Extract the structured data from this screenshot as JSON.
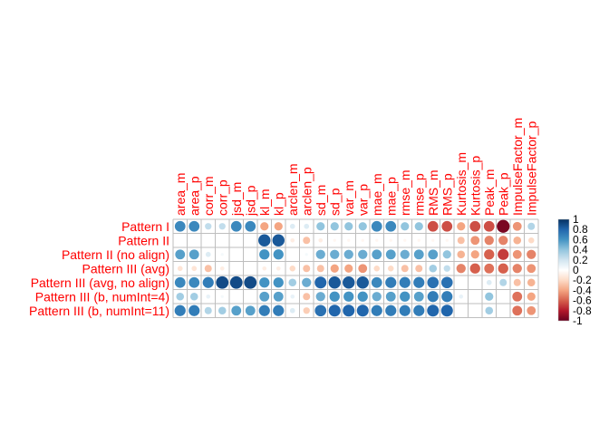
{
  "chart_data": {
    "type": "heatmap",
    "title": "",
    "method": "circle",
    "rows": [
      "Pattern I",
      "Pattern II",
      "Pattern II (no align)",
      "Pattern III (avg)",
      "Pattern III (avg, no align)",
      "Pattern III (b, numInt=4)",
      "Pattern III (b, numInt=11)"
    ],
    "columns": [
      "area_m",
      "area_p",
      "corr_m",
      "corr_p",
      "jsd_m",
      "jsd_p",
      "kl_m",
      "kl_p",
      "arclen_m",
      "arclen_p",
      "sd_m",
      "sd_p",
      "var_m",
      "var_p",
      "mae_m",
      "mae_p",
      "rmse_m",
      "rmse_p",
      "RMS_m",
      "RMS_p",
      "Kurtosis_m",
      "Kurtosis_p",
      "Peak_m",
      "Peak_p",
      "ImpulseFactor_m",
      "ImpulseFactor_p"
    ],
    "values": [
      [
        0.65,
        0.65,
        0.25,
        0.25,
        0.65,
        0.65,
        -0.4,
        -0.4,
        0.15,
        0.15,
        0.4,
        0.4,
        0.4,
        0.4,
        0.65,
        0.65,
        0.4,
        0.4,
        -0.65,
        -0.65,
        -0.4,
        -0.65,
        -0.65,
        -0.95,
        -0.45,
        0.3
      ],
      [
        0.0,
        0.0,
        0.0,
        0.0,
        0.0,
        0.0,
        0.85,
        0.85,
        -0.1,
        -0.3,
        -0.1,
        -0.05,
        -0.05,
        -0.05,
        -0.05,
        -0.05,
        -0.05,
        -0.05,
        -0.05,
        -0.05,
        -0.3,
        -0.45,
        -0.5,
        -0.5,
        -0.35,
        -0.2
      ],
      [
        0.55,
        0.55,
        0.15,
        0.05,
        0.0,
        0.0,
        0.6,
        0.6,
        0.0,
        0.05,
        0.5,
        0.5,
        0.5,
        0.5,
        0.55,
        0.55,
        0.5,
        0.55,
        0.55,
        0.4,
        -0.35,
        -0.4,
        -0.6,
        -0.7,
        -0.45,
        -0.5
      ],
      [
        -0.15,
        -0.15,
        -0.3,
        -0.1,
        0.0,
        0.0,
        -0.1,
        -0.1,
        -0.2,
        -0.3,
        -0.3,
        -0.4,
        -0.4,
        -0.45,
        -0.2,
        -0.2,
        -0.3,
        -0.3,
        0.35,
        0.25,
        -0.5,
        -0.6,
        -0.55,
        -0.6,
        -0.5,
        -0.45
      ],
      [
        0.65,
        0.65,
        0.7,
        0.9,
        0.9,
        0.9,
        0.6,
        0.6,
        0.35,
        0.5,
        0.8,
        0.85,
        0.85,
        0.85,
        0.65,
        0.7,
        0.7,
        0.7,
        0.75,
        0.75,
        0.0,
        0.0,
        0.15,
        0.3,
        -0.3,
        -0.35
      ],
      [
        0.35,
        0.35,
        0.1,
        0.05,
        0.0,
        0.0,
        0.55,
        0.55,
        0.1,
        -0.3,
        0.5,
        0.6,
        0.6,
        0.6,
        0.5,
        0.55,
        0.6,
        0.55,
        0.7,
        0.7,
        0.1,
        0.0,
        0.4,
        0.0,
        -0.55,
        -0.4
      ],
      [
        0.7,
        0.7,
        0.3,
        0.35,
        0.55,
        0.55,
        0.7,
        0.7,
        0.15,
        -0.25,
        0.75,
        0.8,
        0.8,
        0.8,
        0.7,
        0.7,
        0.7,
        0.7,
        0.8,
        0.8,
        0.0,
        0.0,
        0.35,
        0.0,
        -0.55,
        -0.45
      ]
    ],
    "legend": {
      "ticks": [
        "1",
        "0.8",
        "0.6",
        "0.4",
        "0.2",
        "0",
        "-0.2",
        "-0.4",
        "-0.6",
        "-0.8",
        "-1"
      ],
      "range": [
        -1,
        1
      ],
      "placement": "right"
    },
    "colors": {
      "label_color": "#ff0000",
      "grid_color": "#bebebe",
      "scale": [
        "#67001f",
        "#b2182b",
        "#d6604d",
        "#f4a582",
        "#fddbc7",
        "#ffffff",
        "#d1e5f0",
        "#92c5de",
        "#4393c3",
        "#2166ac",
        "#053061"
      ]
    },
    "grid": true
  }
}
